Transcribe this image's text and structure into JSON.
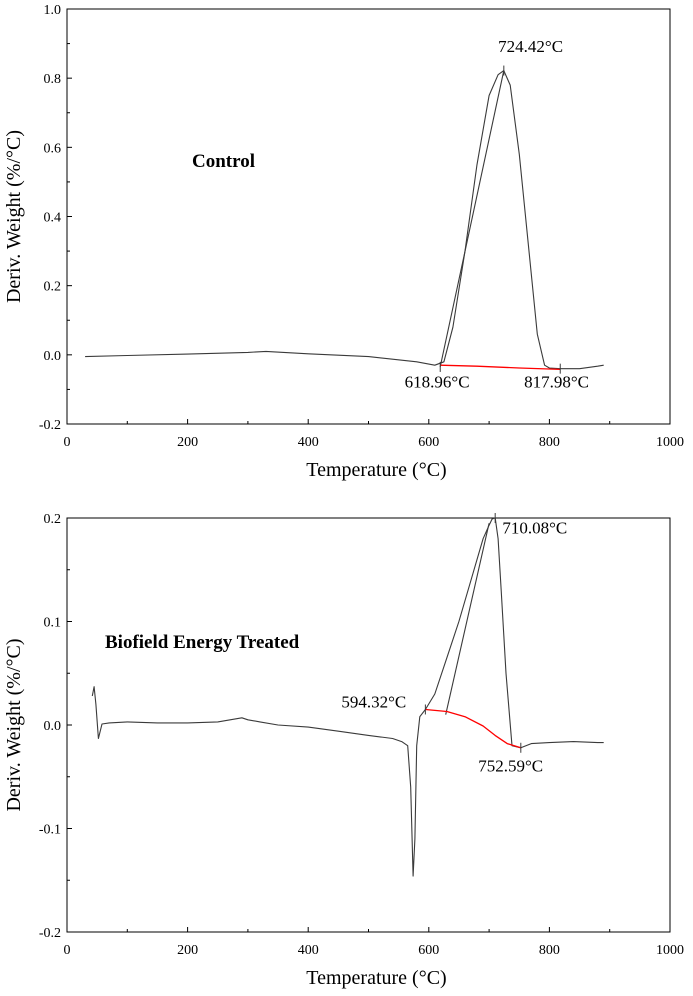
{
  "colors": {
    "curve": "#3a3a3a",
    "baseline": "#ff0000",
    "axis": "#000000"
  },
  "chart_data": [
    {
      "type": "line",
      "title": "",
      "panel_label": "Control",
      "xlabel": "Temperature (°C)",
      "ylabel": "Deriv. Weight (%/°C)",
      "xlim": [
        0,
        1000
      ],
      "ylim": [
        -0.2,
        1.0
      ],
      "x_ticks": [
        "0",
        "200",
        "400",
        "600",
        "800",
        "1000"
      ],
      "y_ticks": [
        "-0.2",
        "0.0",
        "0.2",
        "0.4",
        "0.6",
        "0.8",
        "1.0"
      ],
      "grid": false,
      "series": [
        {
          "role": "dtg-curve",
          "x": [
            30,
            100,
            200,
            300,
            330,
            400,
            500,
            580,
            610,
            625,
            640,
            660,
            680,
            700,
            715,
            724.42,
            735,
            750,
            765,
            780,
            792,
            800,
            817.98,
            850,
            880,
            890
          ],
          "y": [
            -0.005,
            -0.002,
            0.002,
            0.007,
            0.01,
            0.003,
            -0.005,
            -0.02,
            -0.03,
            -0.02,
            0.08,
            0.3,
            0.55,
            0.75,
            0.81,
            0.822,
            0.78,
            0.58,
            0.32,
            0.06,
            -0.03,
            -0.038,
            -0.04,
            -0.04,
            -0.033,
            -0.03
          ]
        },
        {
          "role": "onset-tangent",
          "x": [
            618.96,
            724.42
          ],
          "y": [
            -0.035,
            0.822
          ]
        },
        {
          "role": "fitted-baseline",
          "x": [
            618.96,
            680,
            750,
            817.98
          ],
          "y": [
            -0.03,
            -0.033,
            -0.038,
            -0.042
          ]
        }
      ],
      "annotations": [
        {
          "label": "724.42°C",
          "x": 724.42,
          "y": 0.822,
          "text_at": {
            "x": 715,
            "y": 0.875
          }
        },
        {
          "label": "618.96°C",
          "x": 618.96,
          "y": -0.035,
          "text_at": {
            "x": 560,
            "y": -0.095
          }
        },
        {
          "label": "817.98°C",
          "x": 817.98,
          "y": -0.04,
          "text_at": {
            "x": 758,
            "y": -0.095
          }
        }
      ]
    },
    {
      "type": "line",
      "title": "",
      "panel_label": "Biofield Energy Treated",
      "xlabel": "Temperature (°C)",
      "ylabel": "Deriv. Weight (%/°C)",
      "xlim": [
        0,
        1000
      ],
      "ylim": [
        -0.2,
        0.2
      ],
      "x_ticks": [
        "0",
        "200",
        "400",
        "600",
        "800",
        "1000"
      ],
      "y_ticks": [
        "-0.2",
        "-0.1",
        "0.0",
        "0.1",
        "0.2"
      ],
      "grid": false,
      "series": [
        {
          "role": "dtg-curve",
          "x": [
            42,
            45,
            48,
            52,
            58,
            70,
            100,
            150,
            200,
            250,
            290,
            300,
            320,
            350,
            400,
            450,
            500,
            540,
            555,
            565,
            570,
            574,
            577,
            580,
            585,
            594.32,
            610,
            630,
            650,
            670,
            690,
            700,
            705,
            710.08,
            715,
            720,
            728,
            738,
            752.59,
            770,
            800,
            840,
            880,
            890
          ],
          "y": [
            0.028,
            0.037,
            0.02,
            -0.013,
            0.001,
            0.002,
            0.003,
            0.002,
            0.002,
            0.003,
            0.007,
            0.005,
            0.003,
            0.0,
            -0.002,
            -0.006,
            -0.01,
            -0.013,
            -0.016,
            -0.02,
            -0.06,
            -0.146,
            -0.11,
            -0.02,
            0.008,
            0.015,
            0.03,
            0.065,
            0.1,
            0.14,
            0.18,
            0.193,
            0.199,
            0.2,
            0.18,
            0.13,
            0.05,
            -0.02,
            -0.022,
            -0.018,
            -0.017,
            -0.016,
            -0.017,
            -0.017
          ]
        },
        {
          "role": "onset-tangent",
          "x": [
            628,
            700
          ],
          "y": [
            0.01,
            0.195
          ]
        },
        {
          "role": "fitted-baseline",
          "x": [
            594.32,
            630,
            660,
            690,
            710,
            730,
            752.59
          ],
          "y": [
            0.015,
            0.013,
            0.008,
            -0.001,
            -0.01,
            -0.018,
            -0.022
          ]
        }
      ],
      "annotations": [
        {
          "label": "710.08°C",
          "x": 710.08,
          "y": 0.2,
          "text_at": {
            "x": 722,
            "y": 0.185
          }
        },
        {
          "label": "594.32°C",
          "x": 594.32,
          "y": 0.015,
          "text_at": {
            "x": 455,
            "y": 0.017
          }
        },
        {
          "label": "752.59°C",
          "x": 752.59,
          "y": -0.022,
          "text_at": {
            "x": 682,
            "y": -0.045
          }
        }
      ]
    }
  ]
}
